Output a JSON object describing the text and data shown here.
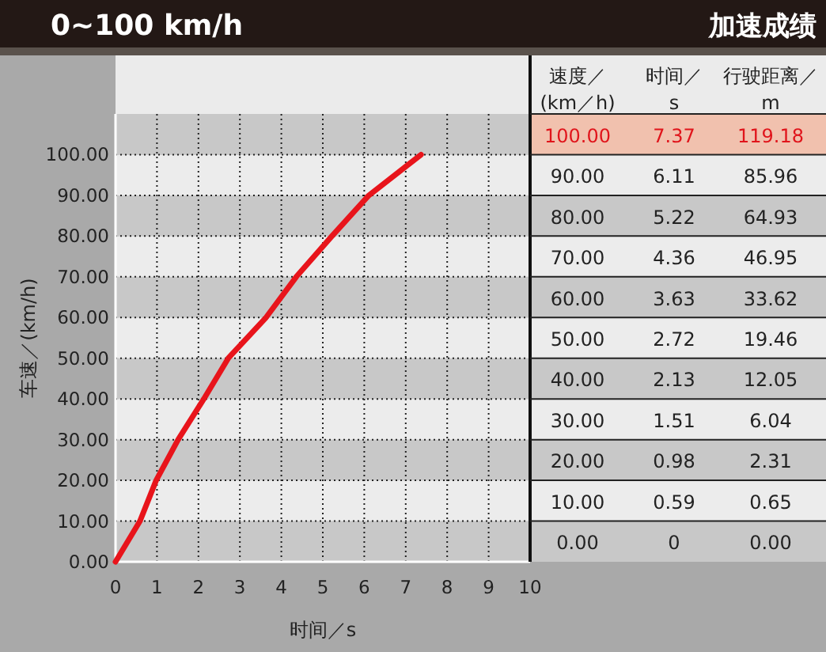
{
  "chart_data": {
    "type": "line",
    "title": "0~100 km/h",
    "subtitle": "加速成绩",
    "xlabel": "时间／s",
    "ylabel": "车速／(km/h)",
    "x": [
      0,
      0.59,
      0.98,
      1.51,
      2.13,
      2.72,
      3.63,
      4.36,
      5.22,
      6.11,
      7.37
    ],
    "series": [
      {
        "color": "#e8141b",
        "values": [
          0,
          10,
          20,
          30,
          40,
          50,
          60,
          70,
          80,
          90,
          100
        ]
      }
    ],
    "xlim": [
      0,
      10
    ],
    "xticks": [
      0,
      1,
      2,
      3,
      4,
      5,
      6,
      7,
      8,
      9,
      10
    ],
    "ylim": [
      0,
      110
    ],
    "yticks": [
      {
        "value": 0,
        "label": "0.00"
      },
      {
        "value": 10,
        "label": "10.00"
      },
      {
        "value": 20,
        "label": "20.00"
      },
      {
        "value": 30,
        "label": "30.00"
      },
      {
        "value": 40,
        "label": "40.00"
      },
      {
        "value": 50,
        "label": "50.00"
      },
      {
        "value": 60,
        "label": "60.00"
      },
      {
        "value": 70,
        "label": "70.00"
      },
      {
        "value": 80,
        "label": "80.00"
      },
      {
        "value": 90,
        "label": "90.00"
      },
      {
        "value": 100,
        "label": "100.00"
      }
    ],
    "grid": true,
    "line_style": "solid",
    "annotations": [
      "速度／\n(km／h)",
      "时间／\ns",
      "行驶距离／\nm",
      "100.00",
      "7.37",
      "119.18",
      "90.00",
      "6.11",
      "85.96",
      "80.00",
      "5.22",
      "64.93",
      "70.00",
      "4.36",
      "46.95",
      "60.00",
      "3.63",
      "33.62",
      "50.00",
      "2.72",
      "19.46",
      "40.00",
      "2.13",
      "12.05",
      "30.00",
      "1.51",
      "6.04",
      "20.00",
      "0.98",
      "2.31",
      "10.00",
      "0.59",
      "0.65",
      "0.00",
      "0",
      "0.00"
    ]
  }
}
